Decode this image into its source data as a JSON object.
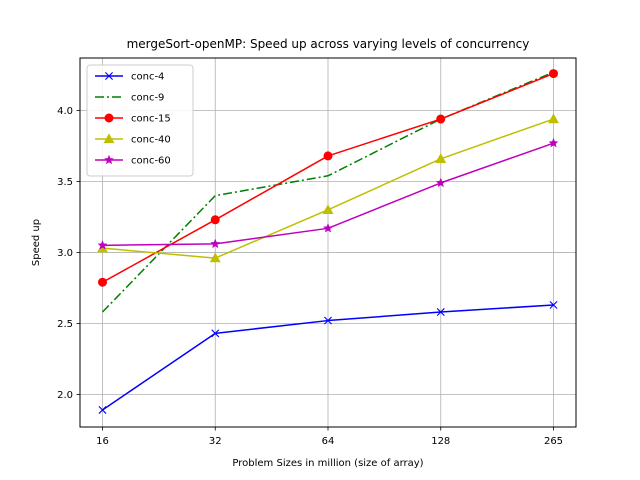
{
  "chart_data": {
    "type": "line",
    "title": "mergeSort-openMP: Speed up across varying levels of concurrency",
    "xlabel": "Problem Sizes in million (size of array)",
    "ylabel": "Speed up",
    "x": [
      "16",
      "32",
      "64",
      "128",
      "265"
    ],
    "x_scale": "categorical (evenly spaced)",
    "ylim": [
      1.77,
      4.37
    ],
    "yticks": [
      "2.0",
      "2.5",
      "3.0",
      "3.5",
      "4.0"
    ],
    "grid": true,
    "legend_placement": "top-left",
    "series": [
      {
        "name": "conc-4",
        "color": "#0000ff",
        "line_style": "solid",
        "marker": "x",
        "values": [
          1.89,
          2.43,
          2.52,
          2.58,
          2.63
        ]
      },
      {
        "name": "conc-9",
        "color": "#008000",
        "line_style": "dash-dot",
        "marker": "none",
        "values": [
          2.58,
          3.4,
          3.54,
          3.94,
          4.27
        ]
      },
      {
        "name": "conc-15",
        "color": "#ff0000",
        "line_style": "solid",
        "marker": "circle",
        "values": [
          2.79,
          3.23,
          3.68,
          3.94,
          4.26
        ]
      },
      {
        "name": "conc-40",
        "color": "#bfbf00",
        "line_style": "solid",
        "marker": "triangle",
        "values": [
          3.03,
          2.96,
          3.3,
          3.66,
          3.94
        ]
      },
      {
        "name": "conc-60",
        "color": "#bf00bf",
        "line_style": "solid",
        "marker": "star",
        "values": [
          3.05,
          3.06,
          3.17,
          3.49,
          3.77
        ]
      }
    ]
  }
}
